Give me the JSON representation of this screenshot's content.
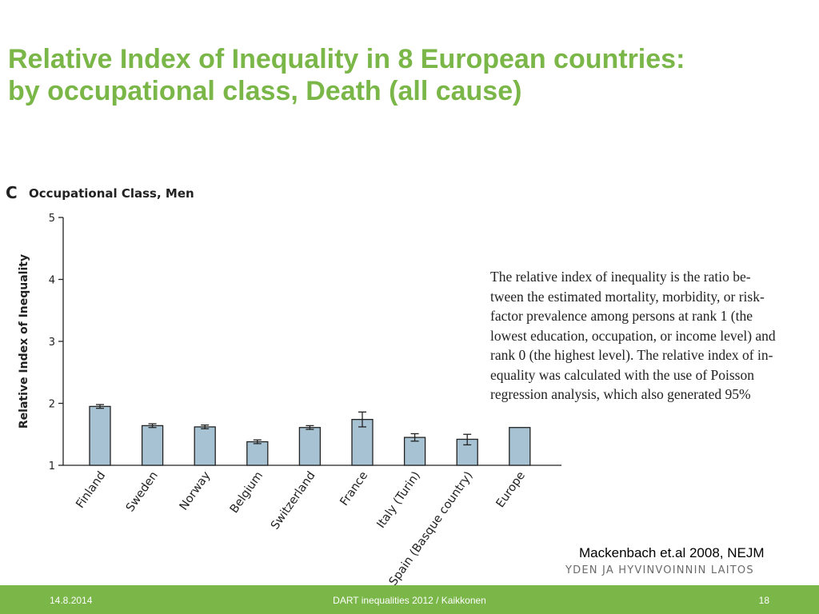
{
  "slide": {
    "title_lines": [
      "Relative Index of Inequality in 8 European countries:",
      "by occupational class, Death (all cause)"
    ],
    "explanation_lines": [
      "The relative index of inequality is the ratio be-",
      "tween the estimated mortality, morbidity, or risk-",
      "factor prevalence among persons at rank 1 (the",
      "lowest education, occupation, or income level) and",
      "rank 0 (the highest level). The relative index of in-",
      "equality was calculated with the use of Poisson",
      "regression analysis, which also generated 95%"
    ],
    "citation": "Mackenbach et.al 2008, NEJM",
    "institute": "YDEN JA HYVINVOINNIN LAITOS"
  },
  "footer": {
    "date": "14.8.2014",
    "center": "DART inequalities 2012 / Kaikkonen",
    "page": "18"
  },
  "colors": {
    "title": "#7ab648",
    "footer_bg": "#7ab648",
    "bar_fill": "#a7c2d2",
    "bar_stroke": "#222222"
  },
  "chart_data": {
    "type": "bar",
    "panel_letter": "C",
    "title": "Occupational Class, Men",
    "xlabel": "",
    "ylabel": "Relative Index of Inequality",
    "ylim": [
      1,
      5
    ],
    "yticks": [
      1,
      2,
      3,
      4,
      5
    ],
    "grid": false,
    "categories": [
      "Finland",
      "Sweden",
      "Norway",
      "Belgium",
      "Switzerland",
      "France",
      "Italy (Turin)",
      "Spain (Basque country)",
      "Europe"
    ],
    "values": [
      1.95,
      1.64,
      1.62,
      1.38,
      1.61,
      1.74,
      1.45,
      1.42,
      1.61
    ],
    "error_low": [
      1.92,
      1.61,
      1.59,
      1.35,
      1.58,
      1.62,
      1.39,
      1.33,
      null
    ],
    "error_high": [
      1.98,
      1.67,
      1.65,
      1.41,
      1.64,
      1.86,
      1.51,
      1.5,
      null
    ]
  }
}
